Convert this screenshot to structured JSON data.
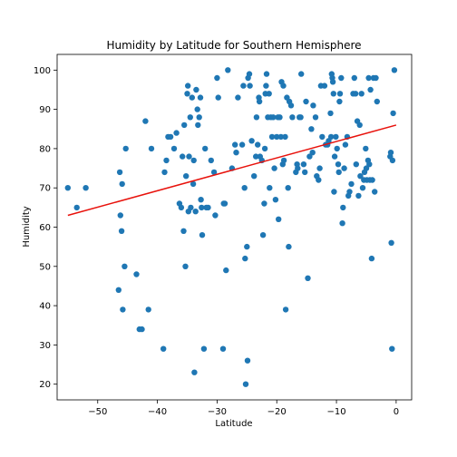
{
  "chart_data": {
    "type": "scatter",
    "title": "Humidity by Latitude for Southern Hemisphere",
    "xlabel": "Latitude",
    "ylabel": "Humidity",
    "xlim": [
      -56.8,
      2.6
    ],
    "ylim": [
      16,
      104
    ],
    "xticks": [
      -50,
      -40,
      -30,
      -20,
      -10,
      0
    ],
    "yticks": [
      20,
      30,
      40,
      50,
      60,
      70,
      80,
      90,
      100
    ],
    "grid": false,
    "point_color": "#1f77b4",
    "regression_color": "#e8120c",
    "regression_line": {
      "x": [
        -55,
        0
      ],
      "y": [
        63,
        86
      ]
    },
    "points": [
      [
        -55,
        70
      ],
      [
        -53.5,
        65
      ],
      [
        -52,
        70
      ],
      [
        -46.5,
        44
      ],
      [
        -46.3,
        74
      ],
      [
        -46.2,
        63
      ],
      [
        -46,
        59
      ],
      [
        -45.9,
        71
      ],
      [
        -45.8,
        39
      ],
      [
        -45.5,
        50
      ],
      [
        -45.3,
        80
      ],
      [
        -43.5,
        48
      ],
      [
        -43,
        34
      ],
      [
        -42.6,
        34
      ],
      [
        -42,
        87
      ],
      [
        -41.5,
        39
      ],
      [
        -41,
        80
      ],
      [
        -39,
        29
      ],
      [
        -38.8,
        74
      ],
      [
        -38.5,
        77
      ],
      [
        -38.2,
        83
      ],
      [
        -37.8,
        83
      ],
      [
        -37.2,
        80
      ],
      [
        -36.8,
        84
      ],
      [
        -36.3,
        66
      ],
      [
        -36,
        65
      ],
      [
        -35.8,
        78
      ],
      [
        -35.6,
        59
      ],
      [
        -35.5,
        86
      ],
      [
        -35.3,
        50
      ],
      [
        -35.2,
        73
      ],
      [
        -35,
        94
      ],
      [
        -34.9,
        96
      ],
      [
        -34.8,
        64
      ],
      [
        -34.7,
        78
      ],
      [
        -34.5,
        88
      ],
      [
        -34.4,
        65
      ],
      [
        -34.2,
        93
      ],
      [
        -34,
        71
      ],
      [
        -33.9,
        77
      ],
      [
        -33.8,
        23
      ],
      [
        -33.6,
        64
      ],
      [
        -33.5,
        95
      ],
      [
        -33.3,
        90
      ],
      [
        -33.2,
        86
      ],
      [
        -33,
        88
      ],
      [
        -32.8,
        93
      ],
      [
        -32.7,
        67
      ],
      [
        -32.6,
        65
      ],
      [
        -32.5,
        58
      ],
      [
        -32.2,
        29
      ],
      [
        -32,
        80
      ],
      [
        -31.8,
        65
      ],
      [
        -31.5,
        65
      ],
      [
        -31,
        77
      ],
      [
        -30.5,
        74
      ],
      [
        -30.3,
        63
      ],
      [
        -30,
        98
      ],
      [
        -29.8,
        93
      ],
      [
        -29,
        29
      ],
      [
        -28.9,
        66
      ],
      [
        -28.7,
        66
      ],
      [
        -28.5,
        49
      ],
      [
        -28.2,
        100
      ],
      [
        -27.5,
        75
      ],
      [
        -27,
        81
      ],
      [
        -26.8,
        79
      ],
      [
        -26.5,
        93
      ],
      [
        -25.8,
        81
      ],
      [
        -25.6,
        96
      ],
      [
        -25.4,
        70
      ],
      [
        -25.3,
        52
      ],
      [
        -25.2,
        20
      ],
      [
        -25,
        55
      ],
      [
        -24.9,
        26
      ],
      [
        -24.8,
        98
      ],
      [
        -24.6,
        99
      ],
      [
        -24.5,
        96
      ],
      [
        -24.2,
        82
      ],
      [
        -23.8,
        73
      ],
      [
        -23.5,
        78
      ],
      [
        -23.4,
        88
      ],
      [
        -23.2,
        81
      ],
      [
        -23,
        93
      ],
      [
        -22.9,
        92
      ],
      [
        -22.8,
        78
      ],
      [
        -22.5,
        77
      ],
      [
        -22.3,
        58
      ],
      [
        -22.1,
        66
      ],
      [
        -22,
        80
      ],
      [
        -21.9,
        94
      ],
      [
        -21.8,
        96
      ],
      [
        -21.7,
        99
      ],
      [
        -21.5,
        88
      ],
      [
        -21.3,
        94
      ],
      [
        -21.2,
        70
      ],
      [
        -21,
        88
      ],
      [
        -20.8,
        83
      ],
      [
        -20.6,
        88
      ],
      [
        -20.4,
        75
      ],
      [
        -20.2,
        67
      ],
      [
        -20,
        83
      ],
      [
        -19.8,
        88
      ],
      [
        -19.7,
        62
      ],
      [
        -19.5,
        88
      ],
      [
        -19.3,
        83
      ],
      [
        -19.2,
        97
      ],
      [
        -19,
        76
      ],
      [
        -18.9,
        96
      ],
      [
        -18.8,
        77
      ],
      [
        -18.6,
        83
      ],
      [
        -18.5,
        39
      ],
      [
        -18.3,
        93
      ],
      [
        -18.1,
        70
      ],
      [
        -18,
        55
      ],
      [
        -17.9,
        92
      ],
      [
        -17.6,
        91
      ],
      [
        -17.4,
        88
      ],
      [
        -16.8,
        74
      ],
      [
        -16.6,
        76
      ],
      [
        -16.5,
        75
      ],
      [
        -16.2,
        88
      ],
      [
        -16,
        88
      ],
      [
        -15.9,
        99
      ],
      [
        -15.5,
        76
      ],
      [
        -15.3,
        74
      ],
      [
        -15.1,
        92
      ],
      [
        -14.8,
        47
      ],
      [
        -14.5,
        78
      ],
      [
        -14.2,
        85
      ],
      [
        -14,
        79
      ],
      [
        -13.9,
        91
      ],
      [
        -13.5,
        88
      ],
      [
        -13.3,
        73
      ],
      [
        -13,
        72
      ],
      [
        -12.8,
        75
      ],
      [
        -12.6,
        96
      ],
      [
        -12.4,
        83
      ],
      [
        -12,
        96
      ],
      [
        -11.8,
        81
      ],
      [
        -11.5,
        81
      ],
      [
        -11.3,
        82
      ],
      [
        -11,
        89
      ],
      [
        -10.9,
        83
      ],
      [
        -10.8,
        99
      ],
      [
        -10.7,
        98
      ],
      [
        -10.6,
        97
      ],
      [
        -10.5,
        94
      ],
      [
        -10.4,
        69
      ],
      [
        -10.3,
        78
      ],
      [
        -10.1,
        83
      ],
      [
        -9.9,
        80
      ],
      [
        -9.7,
        76
      ],
      [
        -9.6,
        74
      ],
      [
        -9.5,
        92
      ],
      [
        -9.4,
        94
      ],
      [
        -9.2,
        98
      ],
      [
        -9,
        61
      ],
      [
        -8.9,
        65
      ],
      [
        -8.7,
        75
      ],
      [
        -8.5,
        81
      ],
      [
        -8.2,
        83
      ],
      [
        -8,
        68
      ],
      [
        -7.8,
        69
      ],
      [
        -7.5,
        71
      ],
      [
        -7.2,
        94
      ],
      [
        -7,
        98
      ],
      [
        -6.8,
        94
      ],
      [
        -6.7,
        76
      ],
      [
        -6.5,
        87
      ],
      [
        -6.3,
        68
      ],
      [
        -6.1,
        86
      ],
      [
        -6,
        73
      ],
      [
        -5.8,
        94
      ],
      [
        -5.6,
        70
      ],
      [
        -5.4,
        72
      ],
      [
        -5.3,
        74
      ],
      [
        -5.1,
        80
      ],
      [
        -5,
        75
      ],
      [
        -4.9,
        72
      ],
      [
        -4.7,
        77
      ],
      [
        -4.6,
        98
      ],
      [
        -4.5,
        76
      ],
      [
        -4.4,
        72
      ],
      [
        -4.3,
        95
      ],
      [
        -4.1,
        52
      ],
      [
        -4,
        72
      ],
      [
        -3.8,
        98
      ],
      [
        -3.6,
        69
      ],
      [
        -3.4,
        98
      ],
      [
        -3.2,
        92
      ],
      [
        -1,
        78
      ],
      [
        -0.9,
        79
      ],
      [
        -0.8,
        56
      ],
      [
        -0.7,
        29
      ],
      [
        -0.6,
        77
      ],
      [
        -0.5,
        89
      ],
      [
        -0.3,
        100
      ]
    ]
  }
}
